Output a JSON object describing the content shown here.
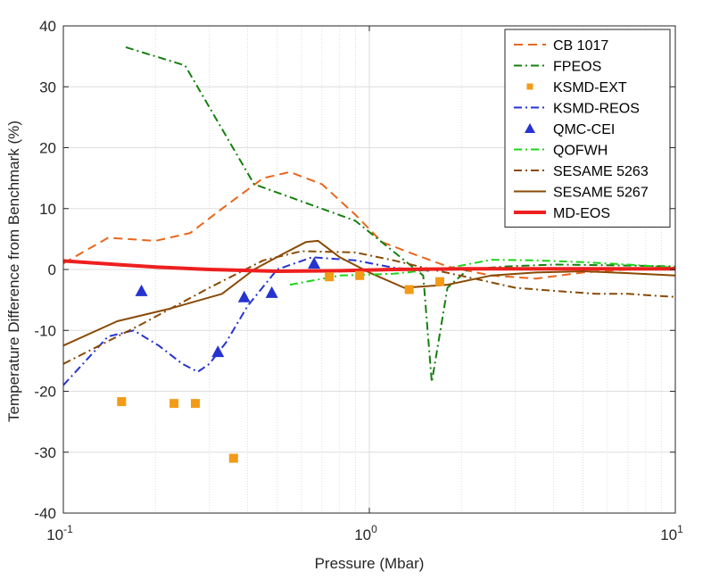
{
  "chart_data": {
    "type": "line",
    "title": "",
    "xlabel": "Pressure (Mbar)",
    "ylabel": "Temperature Difference from Benchmark (%)",
    "xscale": "log",
    "xlim": [
      0.1,
      10
    ],
    "ylim": [
      -40,
      40
    ],
    "yticks": [
      -40,
      -30,
      -20,
      -10,
      0,
      10,
      20,
      30,
      40
    ],
    "ytick_labels": [
      "-40",
      "-30",
      "-20",
      "-10",
      "0",
      "10",
      "20",
      "30",
      "40"
    ],
    "xtick_labels": [
      {
        "base": "10",
        "exp": "-1",
        "value": 0.1
      },
      {
        "base": "10",
        "exp": "0",
        "value": 1
      },
      {
        "base": "10",
        "exp": "1",
        "value": 10
      }
    ],
    "grid": true,
    "legend_position": "top-right",
    "series": [
      {
        "name": "CB 1017",
        "color": "#e8661e",
        "style": "dashed",
        "width": 2,
        "x": [
          0.1,
          0.14,
          0.2,
          0.26,
          0.33,
          0.45,
          0.55,
          0.7,
          0.9,
          1.1,
          1.4,
          1.8,
          2.5,
          3.5,
          5,
          7,
          10
        ],
        "y": [
          1,
          5.2,
          4.7,
          6,
          10,
          15,
          16,
          14,
          9,
          4.5,
          2.5,
          0.5,
          -1,
          -1.5,
          -0.5,
          0,
          0.2
        ]
      },
      {
        "name": "FPEOS",
        "color": "#15800f",
        "style": "dashdot",
        "width": 2,
        "x": [
          0.16,
          0.25,
          0.42,
          0.9,
          1.5,
          1.6,
          1.8,
          2.1,
          2.8,
          4,
          6,
          10
        ],
        "y": [
          36.5,
          33.5,
          14,
          8,
          -1,
          -18.5,
          -3,
          0,
          0.5,
          0.8,
          0.7,
          0.5
        ]
      },
      {
        "name": "KSMD-EXT",
        "color": "#f39b17",
        "style": "square",
        "x": [
          0.155,
          0.23,
          0.27,
          0.36,
          0.74,
          0.93,
          1.35,
          1.7
        ],
        "y": [
          -21.7,
          -22,
          -22,
          -31,
          -1.2,
          -1,
          -3.3,
          -2
        ]
      },
      {
        "name": "KSMD-REOS",
        "color": "#2633d0",
        "style": "dashdot",
        "width": 2,
        "x": [
          0.1,
          0.14,
          0.17,
          0.205,
          0.245,
          0.275,
          0.3,
          0.34,
          0.4,
          0.5,
          0.65,
          0.9,
          1.2,
          1.6
        ],
        "y": [
          -19,
          -11,
          -10,
          -12.5,
          -15.5,
          -16.8,
          -15.5,
          -12,
          -6,
          0,
          2,
          1.5,
          0.3,
          -0.3
        ]
      },
      {
        "name": "QMC-CEI",
        "color": "#2633d0",
        "style": "triangle",
        "x": [
          0.18,
          0.32,
          0.39,
          0.48,
          0.66
        ],
        "y": [
          -3.5,
          -13.5,
          -4.5,
          -3.8,
          1
        ]
      },
      {
        "name": "QOFWH",
        "color": "#1dd41a",
        "style": "dashdot",
        "width": 2,
        "x": [
          0.55,
          0.8,
          1.2,
          1.8,
          2.5,
          3.5,
          5,
          7,
          10
        ],
        "y": [
          -2.5,
          -1,
          -0.7,
          0.2,
          1.6,
          1.5,
          1.2,
          0.8,
          0.3
        ]
      },
      {
        "name": "SESAME 5263",
        "color": "#8a4a05",
        "style": "dashdot",
        "width": 2,
        "x": [
          0.1,
          0.18,
          0.3,
          0.45,
          0.6,
          0.9,
          1.2,
          1.6,
          2.2,
          3,
          4,
          5.5,
          7,
          8.5,
          10
        ],
        "y": [
          -15.5,
          -9,
          -3,
          1.5,
          3,
          2.8,
          1.5,
          0,
          -1.5,
          -3,
          -3.5,
          -4,
          -4,
          -4.3,
          -4.5
        ]
      },
      {
        "name": "SESAME 5267",
        "color": "#8a4a05",
        "style": "solid",
        "width": 2,
        "x": [
          0.1,
          0.15,
          0.22,
          0.33,
          0.42,
          0.52,
          0.62,
          0.68,
          0.8,
          1.0,
          1.3,
          1.8,
          2.5,
          3.5,
          5,
          7,
          10
        ],
        "y": [
          -12.5,
          -8.5,
          -6.5,
          -4,
          0,
          2.5,
          4.5,
          4.7,
          2,
          -0.5,
          -3,
          -2.5,
          -1,
          -0.5,
          -0.3,
          -0.6,
          -1
        ]
      },
      {
        "name": "MD-EOS",
        "color": "#ee1f1f",
        "style": "solid",
        "width": 4,
        "x": [
          0.1,
          0.15,
          0.2,
          0.3,
          0.5,
          0.8,
          1.2,
          2,
          3,
          5,
          10
        ],
        "y": [
          1.4,
          0.8,
          0.4,
          0,
          -0.3,
          -0.2,
          0,
          0.1,
          0.1,
          0.1,
          0.1
        ]
      }
    ]
  }
}
